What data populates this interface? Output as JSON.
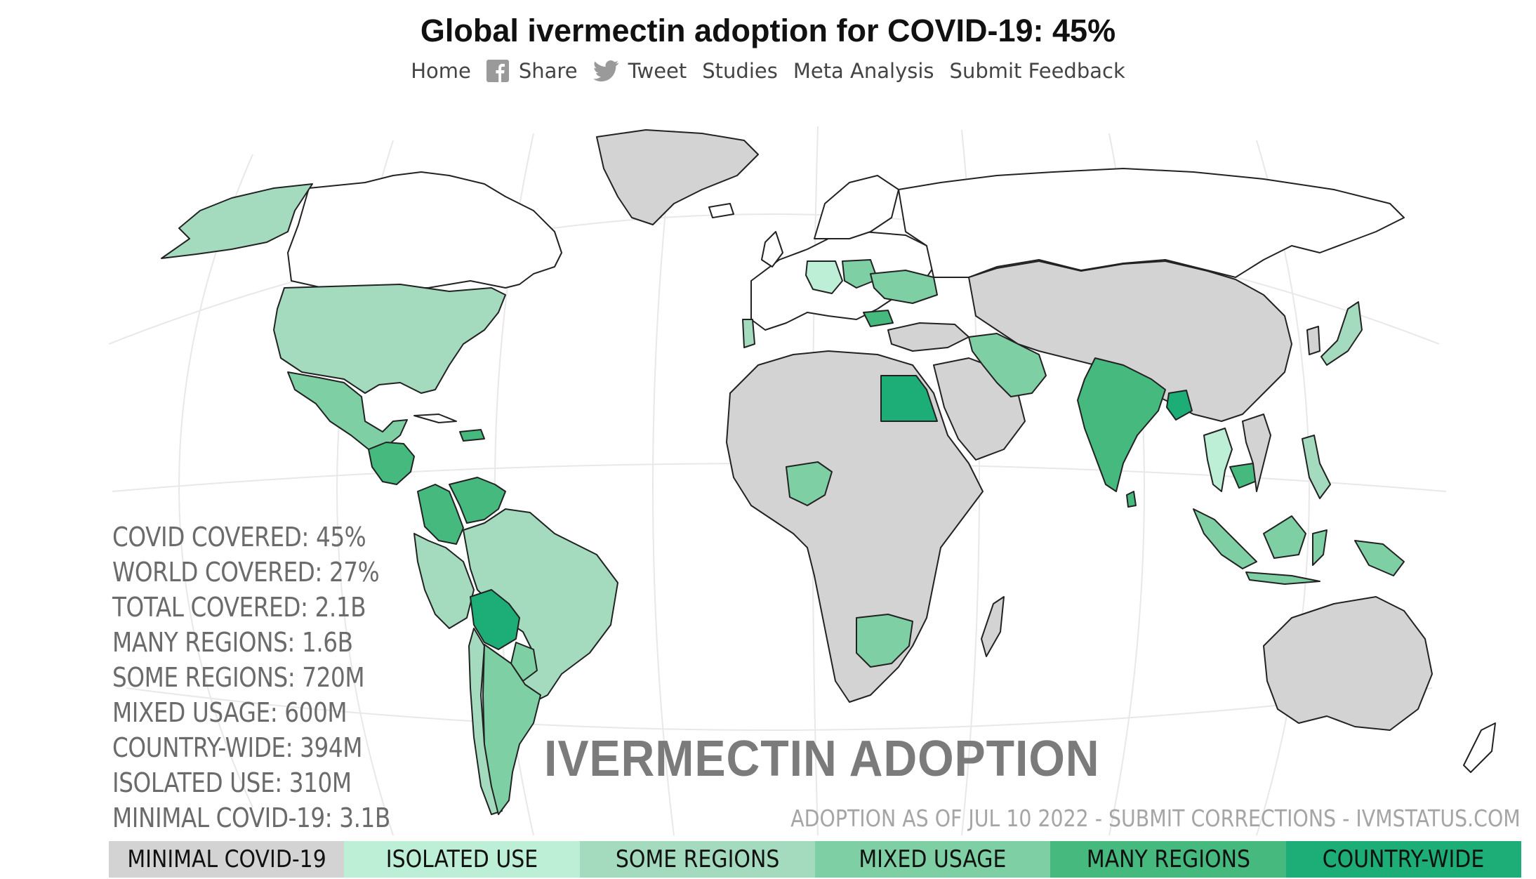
{
  "title": "Global ivermectin adoption for COVID-19: 45%",
  "nav": [
    {
      "label": "Home",
      "icon": ""
    },
    {
      "label": "Share",
      "icon": "facebook-icon"
    },
    {
      "label": "Tweet",
      "icon": "twitter-icon"
    },
    {
      "label": "Studies",
      "icon": ""
    },
    {
      "label": "Meta Analysis",
      "icon": ""
    },
    {
      "label": "Submit Feedback",
      "icon": ""
    }
  ],
  "stats": [
    "COVID COVERED: 45%",
    "WORLD COVERED: 27%",
    "TOTAL COVERED: 2.1B",
    "MANY REGIONS: 1.6B",
    "SOME REGIONS: 720M",
    "MIXED USAGE: 600M",
    "COUNTRY-WIDE: 394M",
    "ISOLATED USE: 310M",
    "MINIMAL COVID-19: 3.1B"
  ],
  "map_heading": "IVERMECTIN ADOPTION",
  "footer_note": "ADOPTION AS OF JUL 10 2022 - SUBMIT CORRECTIONS - IVMSTATUS.COM",
  "legend": [
    {
      "label": "MINIMAL COVID-19",
      "color": "#d3d3d3"
    },
    {
      "label": "ISOLATED USE",
      "color": "#bdeed6"
    },
    {
      "label": "SOME REGIONS",
      "color": "#a4dbbf"
    },
    {
      "label": "MIXED USAGE",
      "color": "#7fcfa4"
    },
    {
      "label": "MANY REGIONS",
      "color": "#45b97e"
    },
    {
      "label": "COUNTRY-WIDE",
      "color": "#1dae78"
    }
  ],
  "regions": [
    {
      "name": "Alaska",
      "category": "SOME REGIONS"
    },
    {
      "name": "United States",
      "category": "SOME REGIONS"
    },
    {
      "name": "Mexico",
      "category": "MIXED USAGE"
    },
    {
      "name": "Central America",
      "category": "MANY REGIONS"
    },
    {
      "name": "Dominican Republic",
      "category": "MANY REGIONS"
    },
    {
      "name": "Colombia",
      "category": "MANY REGIONS"
    },
    {
      "name": "Venezuela",
      "category": "MANY REGIONS"
    },
    {
      "name": "Brazil",
      "category": "SOME REGIONS"
    },
    {
      "name": "Peru",
      "category": "SOME REGIONS"
    },
    {
      "name": "Bolivia",
      "category": "COUNTRY-WIDE"
    },
    {
      "name": "Paraguay",
      "category": "MIXED USAGE"
    },
    {
      "name": "Argentina",
      "category": "MIXED USAGE"
    },
    {
      "name": "Chile",
      "category": "SOME REGIONS"
    },
    {
      "name": "Greenland",
      "category": "MINIMAL COVID-19"
    },
    {
      "name": "Portugal",
      "category": "SOME REGIONS"
    },
    {
      "name": "Germany",
      "category": "ISOLATED USE"
    },
    {
      "name": "Poland",
      "category": "MIXED USAGE"
    },
    {
      "name": "Ukraine",
      "category": "MIXED USAGE"
    },
    {
      "name": "Bulgaria",
      "category": "MANY REGIONS"
    },
    {
      "name": "Egypt",
      "category": "COUNTRY-WIDE"
    },
    {
      "name": "Nigeria",
      "category": "MIXED USAGE"
    },
    {
      "name": "South Africa",
      "category": "MIXED USAGE"
    },
    {
      "name": "Iran",
      "category": "MIXED USAGE"
    },
    {
      "name": "India",
      "category": "MANY REGIONS"
    },
    {
      "name": "Bangladesh",
      "category": "COUNTRY-WIDE"
    },
    {
      "name": "Thailand",
      "category": "ISOLATED USE"
    },
    {
      "name": "Cambodia",
      "category": "MANY REGIONS"
    },
    {
      "name": "Indonesia",
      "category": "MIXED USAGE"
    },
    {
      "name": "Philippines",
      "category": "SOME REGIONS"
    },
    {
      "name": "Japan",
      "category": "SOME REGIONS"
    },
    {
      "name": "Papua New Guinea",
      "category": "MIXED USAGE"
    },
    {
      "name": "Australia",
      "category": "MINIMAL COVID-19"
    }
  ]
}
